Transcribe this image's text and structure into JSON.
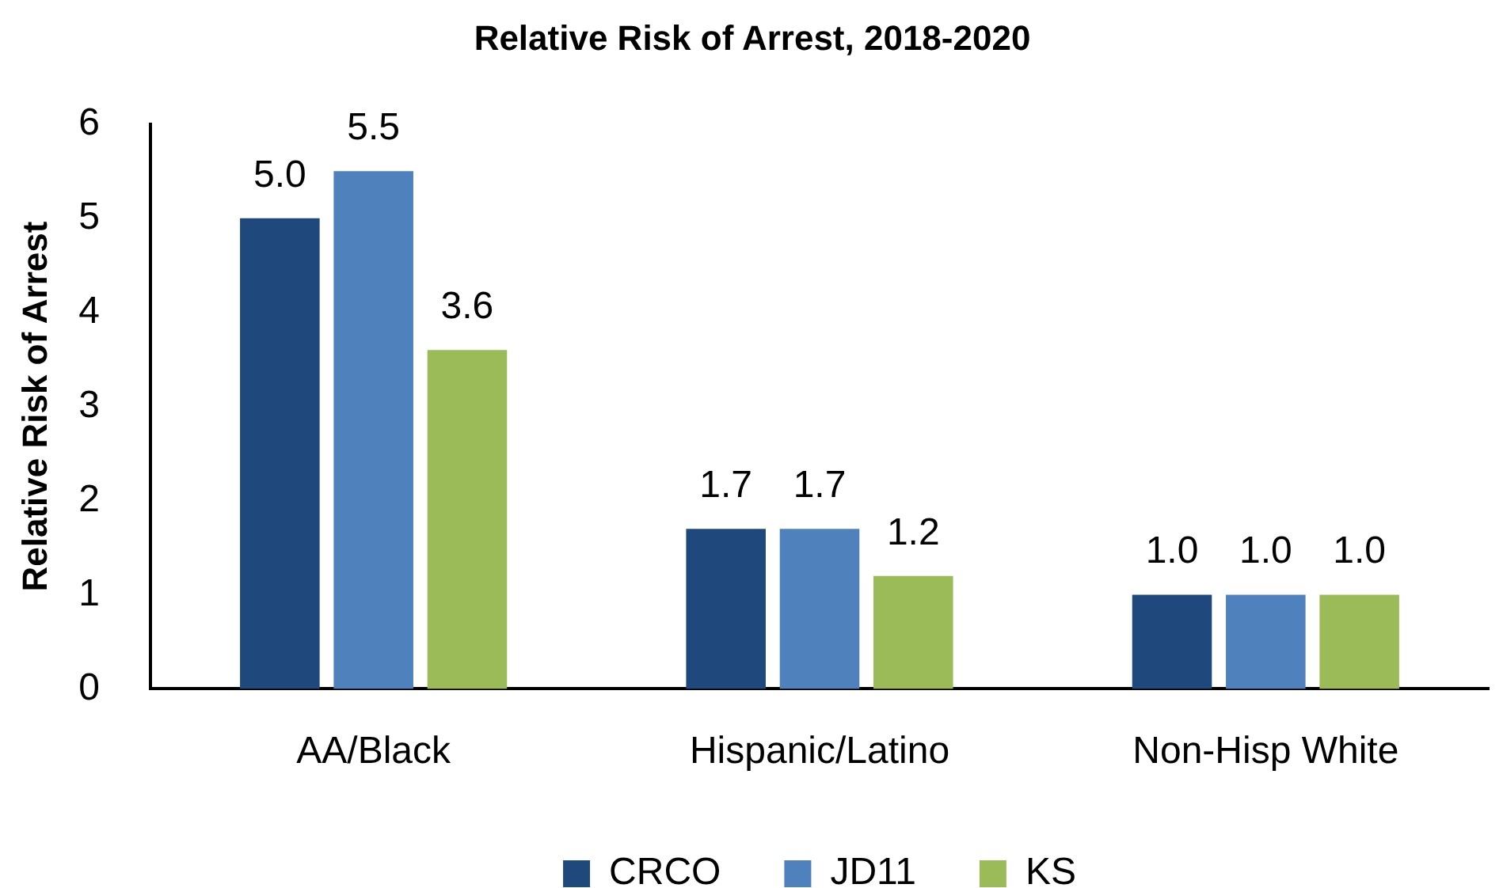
{
  "chart_data": {
    "type": "bar",
    "title": "Relative Risk of Arrest, 2018-2020",
    "ylabel": "Relative Risk of Arrest",
    "categories": [
      "AA/Black",
      "Hispanic/Latino",
      "Non-Hisp White"
    ],
    "series": [
      {
        "name": "CRCO",
        "color": "#1f497d",
        "values": [
          5.0,
          1.7,
          1.0
        ],
        "value_labels": [
          "5.0",
          "1.7",
          "1.0"
        ]
      },
      {
        "name": "JD11",
        "color": "#4f81bd",
        "values": [
          5.5,
          1.7,
          1.0
        ],
        "value_labels": [
          "5.5",
          "1.7",
          "1.0"
        ]
      },
      {
        "name": "KS",
        "color": "#9bbb59",
        "values": [
          3.6,
          1.2,
          1.0
        ],
        "value_labels": [
          "3.6",
          "1.2",
          "1.0"
        ]
      }
    ],
    "ylim": [
      0,
      6
    ],
    "yticks": [
      0,
      1,
      2,
      3,
      4,
      5,
      6
    ],
    "legend": "bottom"
  }
}
